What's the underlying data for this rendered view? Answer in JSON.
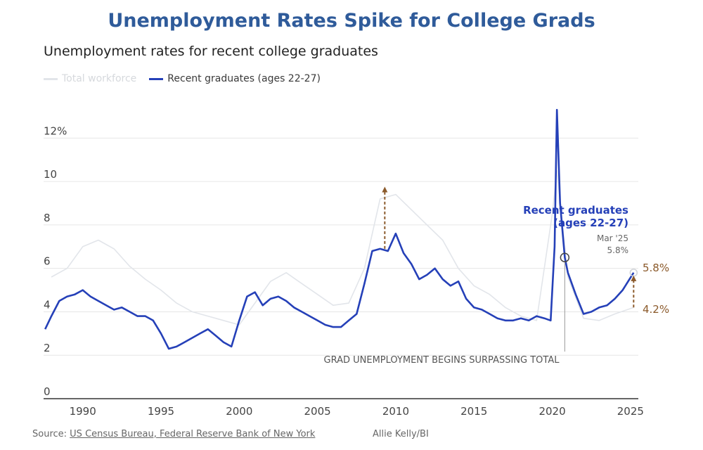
{
  "headline": "Unemployment Rates Spike for College Grads",
  "subtitle": "Unemployment rates for recent college graduates",
  "legend": {
    "total_label": "Total workforce",
    "grad_label": "Recent graduates (ages 22-27)"
  },
  "annotations": {
    "grad_label_line1": "Recent graduates",
    "grad_label_line2": "(ages 22-27)",
    "mar_label": "Mar '25",
    "mar_value": "5.8%",
    "right_high": "5.8%",
    "right_low": "4.2%",
    "surpass_note": "GRAD UNEMPLOYMENT BEGINS SURPASSING TOTAL"
  },
  "footer": {
    "source_prefix": "Source: ",
    "source_text": "US Census Bureau, Federal Reserve Bank of New York",
    "credit": "Allie Kelly/BI"
  },
  "colors": {
    "headline": "#2f5b9a",
    "grad_line": "#2540b8",
    "total_line": "#e2e5ea",
    "arrow": "#8b5a2b",
    "grid": "#e6e6e6"
  },
  "chart_data": {
    "type": "line",
    "title": "Unemployment rates for recent college graduates",
    "xlabel": "",
    "ylabel": "",
    "xlim": [
      1987.5,
      2025.5
    ],
    "ylim": [
      0,
      13.5
    ],
    "yticks": [
      0,
      2,
      4,
      6,
      8,
      10,
      12
    ],
    "ytick_labels": [
      "0",
      "2",
      "4",
      "6",
      "8",
      "10",
      "12%"
    ],
    "xticks": [
      1990,
      1995,
      2000,
      2005,
      2010,
      2015,
      2020,
      2025
    ],
    "xtick_labels": [
      "1990",
      "1995",
      "2000",
      "2005",
      "2010",
      "2015",
      "2020",
      "2025"
    ],
    "grid": true,
    "legend_position": "top-left",
    "series": [
      {
        "name": "Total workforce",
        "points": [
          [
            1988,
            5.6
          ],
          [
            1989,
            6.0
          ],
          [
            1990,
            7.0
          ],
          [
            1991,
            7.3
          ],
          [
            1992,
            6.9
          ],
          [
            1993,
            6.1
          ],
          [
            1994,
            5.5
          ],
          [
            1995,
            5.0
          ],
          [
            1996,
            4.4
          ],
          [
            1997,
            4.0
          ],
          [
            1998,
            3.8
          ],
          [
            1999,
            3.6
          ],
          [
            2000,
            3.4
          ],
          [
            2001,
            4.4
          ],
          [
            2002,
            5.4
          ],
          [
            2003,
            5.8
          ],
          [
            2004,
            5.3
          ],
          [
            2005,
            4.8
          ],
          [
            2006,
            4.3
          ],
          [
            2007,
            4.4
          ],
          [
            2008,
            6.0
          ],
          [
            2009,
            9.2
          ],
          [
            2010,
            9.4
          ],
          [
            2011,
            8.7
          ],
          [
            2012,
            8.0
          ],
          [
            2013,
            7.3
          ],
          [
            2014,
            6.0
          ],
          [
            2015,
            5.2
          ],
          [
            2016,
            4.8
          ],
          [
            2017,
            4.2
          ],
          [
            2018,
            3.8
          ],
          [
            2019,
            3.6
          ],
          [
            2020,
            8.5
          ],
          [
            2020.3,
            10.5
          ],
          [
            2021,
            5.6
          ],
          [
            2022,
            3.7
          ],
          [
            2023,
            3.6
          ],
          [
            2024,
            3.9
          ],
          [
            2025.2,
            4.2
          ]
        ]
      },
      {
        "name": "Recent graduates (ages 22-27)",
        "points": [
          [
            1987.6,
            3.2
          ],
          [
            1988,
            3.8
          ],
          [
            1988.5,
            4.5
          ],
          [
            1989,
            4.7
          ],
          [
            1989.5,
            4.8
          ],
          [
            1990,
            5.0
          ],
          [
            1990.5,
            4.7
          ],
          [
            1991,
            4.5
          ],
          [
            1991.5,
            4.3
          ],
          [
            1992,
            4.1
          ],
          [
            1992.5,
            4.2
          ],
          [
            1993,
            4.0
          ],
          [
            1993.5,
            3.8
          ],
          [
            1994,
            3.8
          ],
          [
            1994.5,
            3.6
          ],
          [
            1995,
            3.0
          ],
          [
            1995.5,
            2.3
          ],
          [
            1996,
            2.4
          ],
          [
            1996.5,
            2.6
          ],
          [
            1997,
            2.8
          ],
          [
            1997.5,
            3.0
          ],
          [
            1998,
            3.2
          ],
          [
            1998.5,
            2.9
          ],
          [
            1999,
            2.6
          ],
          [
            1999.5,
            2.4
          ],
          [
            2000,
            3.6
          ],
          [
            2000.5,
            4.7
          ],
          [
            2001,
            4.9
          ],
          [
            2001.5,
            4.3
          ],
          [
            2002,
            4.6
          ],
          [
            2002.5,
            4.7
          ],
          [
            2003,
            4.5
          ],
          [
            2003.5,
            4.2
          ],
          [
            2004,
            4.0
          ],
          [
            2004.5,
            3.8
          ],
          [
            2005,
            3.6
          ],
          [
            2005.5,
            3.4
          ],
          [
            2006,
            3.3
          ],
          [
            2006.5,
            3.3
          ],
          [
            2007,
            3.6
          ],
          [
            2007.5,
            3.9
          ],
          [
            2008,
            5.3
          ],
          [
            2008.5,
            6.8
          ],
          [
            2009,
            6.9
          ],
          [
            2009.5,
            6.8
          ],
          [
            2010,
            7.6
          ],
          [
            2010.5,
            6.7
          ],
          [
            2011,
            6.2
          ],
          [
            2011.5,
            5.5
          ],
          [
            2012,
            5.7
          ],
          [
            2012.5,
            6.0
          ],
          [
            2013,
            5.5
          ],
          [
            2013.5,
            5.2
          ],
          [
            2014,
            5.4
          ],
          [
            2014.5,
            4.6
          ],
          [
            2015,
            4.2
          ],
          [
            2015.5,
            4.1
          ],
          [
            2016,
            3.9
          ],
          [
            2016.5,
            3.7
          ],
          [
            2017,
            3.6
          ],
          [
            2017.5,
            3.6
          ],
          [
            2018,
            3.7
          ],
          [
            2018.5,
            3.6
          ],
          [
            2019,
            3.8
          ],
          [
            2019.5,
            3.7
          ],
          [
            2019.9,
            3.6
          ],
          [
            2020.15,
            7.0
          ],
          [
            2020.3,
            13.3
          ],
          [
            2020.5,
            9.0
          ],
          [
            2020.8,
            6.5
          ],
          [
            2021,
            5.8
          ],
          [
            2021.5,
            4.8
          ],
          [
            2022,
            3.9
          ],
          [
            2022.5,
            4.0
          ],
          [
            2023,
            4.2
          ],
          [
            2023.5,
            4.3
          ],
          [
            2024,
            4.6
          ],
          [
            2024.5,
            5.0
          ],
          [
            2025.2,
            5.8
          ]
        ]
      }
    ]
  }
}
